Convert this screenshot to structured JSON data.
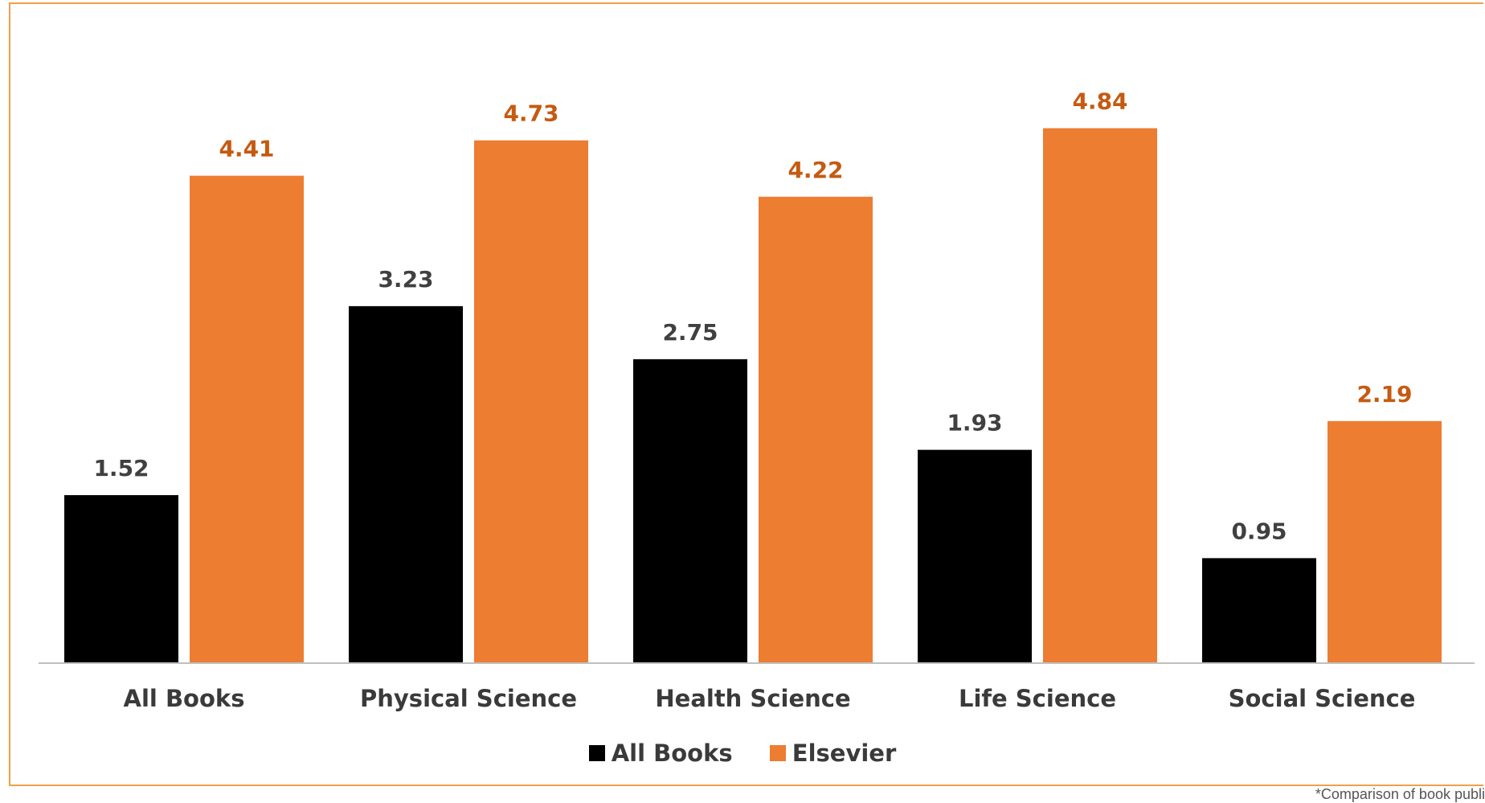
{
  "chart_data": {
    "type": "bar",
    "title": "",
    "categories": [
      "All Books",
      "Physical Science",
      "Health Science",
      "Life Science",
      "Social Science"
    ],
    "series": [
      {
        "name": "All Books",
        "color": "#000000",
        "label_color": "#404040",
        "values": [
          1.52,
          3.23,
          2.75,
          1.93,
          0.95
        ]
      },
      {
        "name": "Elsevier",
        "color": "#ed7d31",
        "label_color": "#c55a11",
        "values": [
          4.41,
          4.73,
          4.22,
          4.84,
          2.19
        ]
      }
    ],
    "ylim": [
      0,
      5.5
    ],
    "grid": false,
    "legend_position": "bottom"
  },
  "footnote": "*Comparison of book publi"
}
